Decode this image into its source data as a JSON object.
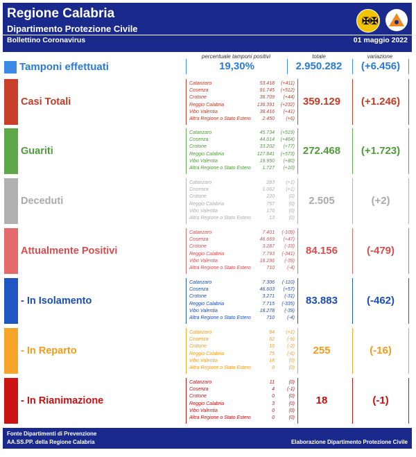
{
  "header": {
    "title": "Regione Calabria",
    "subtitle": "Dipartimento Protezione Civile",
    "bulletin": "Bollettino Coronavirus",
    "date": "01 maggio 2022"
  },
  "columns": {
    "pct": "percentuale tamponi positivi",
    "total": "totale",
    "change": "variazione"
  },
  "tamponi": {
    "label": "Tamponi effettuati",
    "pct": "19,30%",
    "total": "2.950.282",
    "change": "(+6.456)",
    "color": "#2a7ad8"
  },
  "sections": [
    {
      "label": "Casi Totali",
      "total": "359.129",
      "change": "(+1.246)",
      "color": "#c9402a",
      "text": "#c33a25",
      "rows": [
        {
          "name": "Catanzaro",
          "value": "53.418",
          "delta": "(+411)"
        },
        {
          "name": "Cosenza",
          "value": "91.745",
          "delta": "(+512)"
        },
        {
          "name": "Crotone",
          "value": "36.709",
          "delta": "(+44)"
        },
        {
          "name": "Reggio Calabria",
          "value": "136.391",
          "delta": "(+232)"
        },
        {
          "name": "Vibo Valentia",
          "value": "38.416",
          "delta": "(+41)"
        },
        {
          "name": "Altra Regione o Stato Estero",
          "value": "2.450",
          "delta": "(+6)"
        }
      ]
    },
    {
      "label": "Guariti",
      "total": "272.468",
      "change": "(+1.723)",
      "color": "#5fa84a",
      "text": "#4f9a3a",
      "rows": [
        {
          "name": "Catanzaro",
          "value": "45.734",
          "delta": "(+519)"
        },
        {
          "name": "Cosenza",
          "value": "44.014",
          "delta": "(+464)"
        },
        {
          "name": "Crotone",
          "value": "33.202",
          "delta": "(+77)"
        },
        {
          "name": "Reggio Calabria",
          "value": "127.841",
          "delta": "(+573)"
        },
        {
          "name": "Vibo Valentia",
          "value": "19.950",
          "delta": "(+80)"
        },
        {
          "name": "Altra Regione o Stato Estero",
          "value": "1.727",
          "delta": "(+10)"
        }
      ]
    },
    {
      "label": "Deceduti",
      "total": "2.505",
      "change": "(+2)",
      "color": "#b0b0b0",
      "text": "#aaaaaa",
      "rows": [
        {
          "name": "Catanzaro",
          "value": "283",
          "delta": "(+1)"
        },
        {
          "name": "Cosenza",
          "value": "1.062",
          "delta": "(+1)"
        },
        {
          "name": "Crotone",
          "value": "220",
          "delta": "(0)"
        },
        {
          "name": "Reggio Calabria",
          "value": "757",
          "delta": "(0)"
        },
        {
          "name": "Vibo Valentia",
          "value": "170",
          "delta": "(0)"
        },
        {
          "name": "Altra Regione o Stato Estero",
          "value": "13",
          "delta": "(0)"
        }
      ]
    },
    {
      "label": "Attualmente Positivi",
      "total": "84.156",
      "change": "(-479)",
      "color": "#e3696b",
      "text": "#d84c4e",
      "rows": [
        {
          "name": "Catanzaro",
          "value": "7.401",
          "delta": "(-109)"
        },
        {
          "name": "Cosenza",
          "value": "46.669",
          "delta": "(+47)"
        },
        {
          "name": "Crotone",
          "value": "3.287",
          "delta": "(-33)"
        },
        {
          "name": "Reggio Calabria",
          "value": "7.793",
          "delta": "(-341)"
        },
        {
          "name": "Vibo Valentia",
          "value": "18.296",
          "delta": "(-39)"
        },
        {
          "name": "Altra Regione o Stato Estero",
          "value": "710",
          "delta": "(-4)"
        }
      ]
    },
    {
      "label": "- In Isolamento",
      "total": "83.883",
      "change": "(-462)",
      "color": "#1f56c3",
      "text": "#1a4cb5",
      "rows": [
        {
          "name": "Catanzaro",
          "value": "7.306",
          "delta": "(-110)"
        },
        {
          "name": "Cosenza",
          "value": "46.603",
          "delta": "(+57)"
        },
        {
          "name": "Crotone",
          "value": "3.271",
          "delta": "(-31)"
        },
        {
          "name": "Reggio Calabria",
          "value": "7.715",
          "delta": "(-335)"
        },
        {
          "name": "Vibo Valentia",
          "value": "18.278",
          "delta": "(-39)"
        },
        {
          "name": "Altra Regione o Stato Estero",
          "value": "710",
          "delta": "(-4)"
        }
      ]
    },
    {
      "label": "- In Reparto",
      "total": "255",
      "change": "(-16)",
      "color": "#f4a52a",
      "text": "#f39c1a",
      "rows": [
        {
          "name": "Catanzaro",
          "value": "84",
          "delta": "(+1)"
        },
        {
          "name": "Cosenza",
          "value": "62",
          "delta": "(-9)"
        },
        {
          "name": "Crotone",
          "value": "16",
          "delta": "(-2)"
        },
        {
          "name": "Reggio Calabria",
          "value": "75",
          "delta": "(-6)"
        },
        {
          "name": "Vibo Valentia",
          "value": "18",
          "delta": "(0)"
        },
        {
          "name": "Altra Regione o Stato Estero",
          "value": "0",
          "delta": "(0)"
        }
      ]
    },
    {
      "label": "- In Rianimazione",
      "total": "18",
      "change": "(-1)",
      "color": "#cc1414",
      "text": "#c41010",
      "rows": [
        {
          "name": "Catanzaro",
          "value": "11",
          "delta": "(0)"
        },
        {
          "name": "Cosenza",
          "value": "4",
          "delta": "(-1)"
        },
        {
          "name": "Crotone",
          "value": "0",
          "delta": "(0)"
        },
        {
          "name": "Reggio Calabria",
          "value": "3",
          "delta": "(0)"
        },
        {
          "name": "Vibo Valentia",
          "value": "0",
          "delta": "(0)"
        },
        {
          "name": "Altra Regione o Stato Estero",
          "value": "0",
          "delta": "(0)"
        }
      ]
    }
  ],
  "footer": {
    "source": "Fonte Dipartimenti di Prevenzione",
    "asp": "AA.SS.PP.  della Regione Calabria",
    "credit": "Elaborazione Dipartimento Protezione Civile"
  }
}
